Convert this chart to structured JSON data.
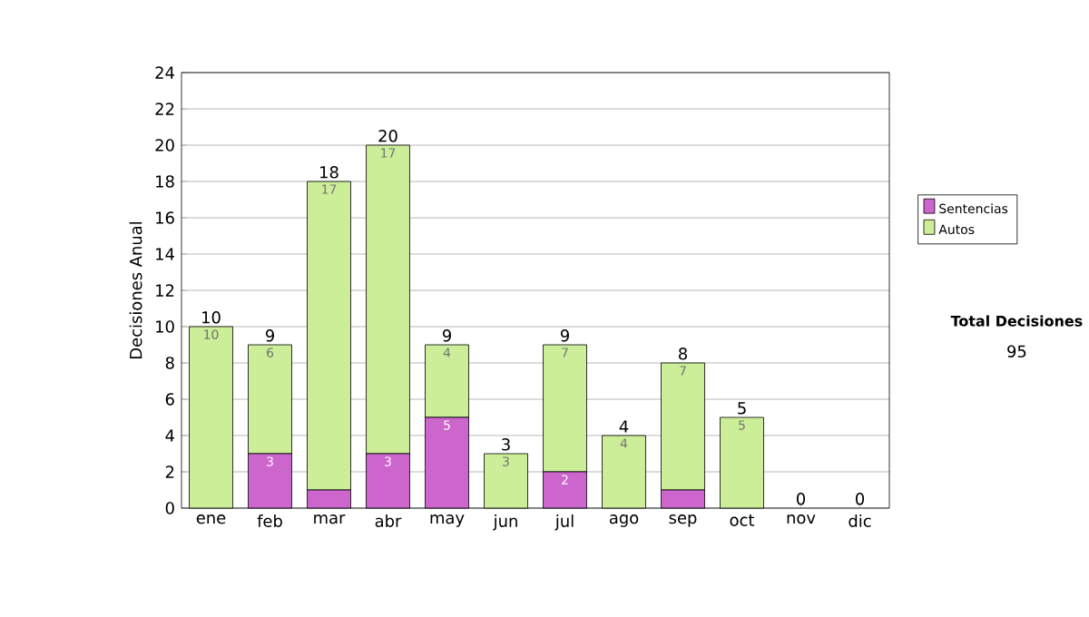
{
  "chart_data": {
    "type": "bar",
    "stacked": true,
    "ylabel": "Decisiones Anual",
    "categories": [
      "ene",
      "feb",
      "mar",
      "abr",
      "may",
      "jun",
      "jul",
      "ago",
      "sep",
      "oct",
      "nov",
      "dic"
    ],
    "series": [
      {
        "name": "Sentencias",
        "color": "#cc66cc",
        "values": [
          0,
          3,
          1,
          3,
          5,
          0,
          2,
          0,
          1,
          0,
          0,
          0
        ],
        "value_labels": [
          null,
          "3",
          null,
          "3",
          "5",
          null,
          "2",
          null,
          null,
          null,
          null,
          null
        ]
      },
      {
        "name": "Autos",
        "color": "#ccee99",
        "values": [
          10,
          6,
          17,
          17,
          4,
          3,
          7,
          4,
          7,
          5,
          0,
          0
        ],
        "value_labels": [
          "10",
          "6",
          "17",
          "17",
          "4",
          "3",
          "7",
          "4",
          "7",
          "5",
          null,
          null
        ]
      }
    ],
    "totals": [
      "10",
      "9",
      "18",
      "20",
      "9",
      "3",
      "9",
      "4",
      "8",
      "5",
      "0",
      "0"
    ],
    "ylim": [
      0,
      24
    ],
    "yticks": [
      0,
      2,
      4,
      6,
      8,
      10,
      12,
      14,
      16,
      18,
      20,
      22,
      24
    ],
    "grid": "y",
    "legend": "right",
    "annotations": [
      "Total Decisiones",
      "95"
    ]
  }
}
